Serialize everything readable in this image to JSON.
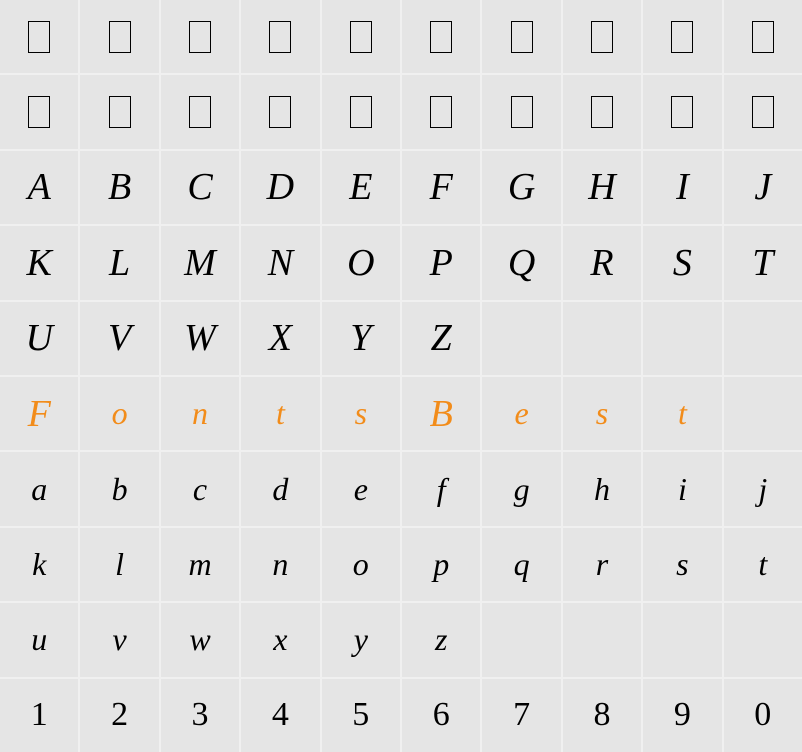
{
  "grid": {
    "columns": 10,
    "rows": 10,
    "background_color": "#e5e5e5",
    "gap_color": "#f0f0f0",
    "text_color": "#000000",
    "highlight_color": "#f28c1a",
    "font_family": "cursive",
    "cells": [
      [
        {
          "t": "box"
        },
        {
          "t": "box"
        },
        {
          "t": "box"
        },
        {
          "t": "box"
        },
        {
          "t": "box"
        },
        {
          "t": "box"
        },
        {
          "t": "box"
        },
        {
          "t": "box"
        },
        {
          "t": "box"
        },
        {
          "t": "box"
        }
      ],
      [
        {
          "t": "box"
        },
        {
          "t": "box"
        },
        {
          "t": "box"
        },
        {
          "t": "box"
        },
        {
          "t": "box"
        },
        {
          "t": "box"
        },
        {
          "t": "box"
        },
        {
          "t": "box"
        },
        {
          "t": "box"
        },
        {
          "t": "box"
        }
      ],
      [
        {
          "t": "char",
          "v": "A",
          "c": "upper"
        },
        {
          "t": "char",
          "v": "B",
          "c": "upper"
        },
        {
          "t": "char",
          "v": "C",
          "c": "upper"
        },
        {
          "t": "char",
          "v": "D",
          "c": "upper"
        },
        {
          "t": "char",
          "v": "E",
          "c": "upper"
        },
        {
          "t": "char",
          "v": "F",
          "c": "upper"
        },
        {
          "t": "char",
          "v": "G",
          "c": "upper"
        },
        {
          "t": "char",
          "v": "H",
          "c": "upper"
        },
        {
          "t": "char",
          "v": "I",
          "c": "upper"
        },
        {
          "t": "char",
          "v": "J",
          "c": "upper"
        }
      ],
      [
        {
          "t": "char",
          "v": "K",
          "c": "upper"
        },
        {
          "t": "char",
          "v": "L",
          "c": "upper"
        },
        {
          "t": "char",
          "v": "M",
          "c": "upper"
        },
        {
          "t": "char",
          "v": "N",
          "c": "upper"
        },
        {
          "t": "char",
          "v": "O",
          "c": "upper"
        },
        {
          "t": "char",
          "v": "P",
          "c": "upper"
        },
        {
          "t": "char",
          "v": "Q",
          "c": "upper"
        },
        {
          "t": "char",
          "v": "R",
          "c": "upper"
        },
        {
          "t": "char",
          "v": "S",
          "c": "upper"
        },
        {
          "t": "char",
          "v": "T",
          "c": "upper"
        }
      ],
      [
        {
          "t": "char",
          "v": "U",
          "c": "upper"
        },
        {
          "t": "char",
          "v": "V",
          "c": "upper"
        },
        {
          "t": "char",
          "v": "W",
          "c": "upper"
        },
        {
          "t": "char",
          "v": "X",
          "c": "upper"
        },
        {
          "t": "char",
          "v": "Y",
          "c": "upper"
        },
        {
          "t": "char",
          "v": "Z",
          "c": "upper"
        },
        {
          "t": "empty"
        },
        {
          "t": "empty"
        },
        {
          "t": "empty"
        },
        {
          "t": "empty"
        }
      ],
      [
        {
          "t": "char",
          "v": "F",
          "c": "upper orange"
        },
        {
          "t": "char",
          "v": "o",
          "c": "lower orange"
        },
        {
          "t": "char",
          "v": "n",
          "c": "lower orange"
        },
        {
          "t": "char",
          "v": "t",
          "c": "lower orange"
        },
        {
          "t": "char",
          "v": "s",
          "c": "lower orange"
        },
        {
          "t": "char",
          "v": "B",
          "c": "upper orange"
        },
        {
          "t": "char",
          "v": "e",
          "c": "lower orange"
        },
        {
          "t": "char",
          "v": "s",
          "c": "lower orange"
        },
        {
          "t": "char",
          "v": "t",
          "c": "lower orange"
        },
        {
          "t": "empty"
        }
      ],
      [
        {
          "t": "char",
          "v": "a",
          "c": "lower"
        },
        {
          "t": "char",
          "v": "b",
          "c": "lower"
        },
        {
          "t": "char",
          "v": "c",
          "c": "lower"
        },
        {
          "t": "char",
          "v": "d",
          "c": "lower"
        },
        {
          "t": "char",
          "v": "e",
          "c": "lower"
        },
        {
          "t": "char",
          "v": "f",
          "c": "lower"
        },
        {
          "t": "char",
          "v": "g",
          "c": "lower"
        },
        {
          "t": "char",
          "v": "h",
          "c": "lower"
        },
        {
          "t": "char",
          "v": "i",
          "c": "lower"
        },
        {
          "t": "char",
          "v": "j",
          "c": "lower"
        }
      ],
      [
        {
          "t": "char",
          "v": "k",
          "c": "lower"
        },
        {
          "t": "char",
          "v": "l",
          "c": "lower"
        },
        {
          "t": "char",
          "v": "m",
          "c": "lower"
        },
        {
          "t": "char",
          "v": "n",
          "c": "lower"
        },
        {
          "t": "char",
          "v": "o",
          "c": "lower"
        },
        {
          "t": "char",
          "v": "p",
          "c": "lower"
        },
        {
          "t": "char",
          "v": "q",
          "c": "lower"
        },
        {
          "t": "char",
          "v": "r",
          "c": "lower"
        },
        {
          "t": "char",
          "v": "s",
          "c": "lower"
        },
        {
          "t": "char",
          "v": "t",
          "c": "lower"
        }
      ],
      [
        {
          "t": "char",
          "v": "u",
          "c": "lower"
        },
        {
          "t": "char",
          "v": "v",
          "c": "lower"
        },
        {
          "t": "char",
          "v": "w",
          "c": "lower"
        },
        {
          "t": "char",
          "v": "x",
          "c": "lower"
        },
        {
          "t": "char",
          "v": "y",
          "c": "lower"
        },
        {
          "t": "char",
          "v": "z",
          "c": "lower"
        },
        {
          "t": "empty"
        },
        {
          "t": "empty"
        },
        {
          "t": "empty"
        },
        {
          "t": "empty"
        }
      ],
      [
        {
          "t": "char",
          "v": "1",
          "c": "digit"
        },
        {
          "t": "char",
          "v": "2",
          "c": "digit"
        },
        {
          "t": "char",
          "v": "3",
          "c": "digit"
        },
        {
          "t": "char",
          "v": "4",
          "c": "digit"
        },
        {
          "t": "char",
          "v": "5",
          "c": "digit"
        },
        {
          "t": "char",
          "v": "6",
          "c": "digit"
        },
        {
          "t": "char",
          "v": "7",
          "c": "digit"
        },
        {
          "t": "char",
          "v": "8",
          "c": "digit"
        },
        {
          "t": "char",
          "v": "9",
          "c": "digit"
        },
        {
          "t": "char",
          "v": "0",
          "c": "digit"
        }
      ]
    ]
  }
}
